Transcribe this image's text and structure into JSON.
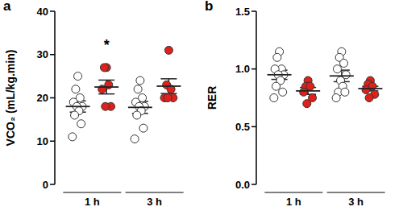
{
  "chart_data": [
    {
      "type": "scatter",
      "title": "a",
      "y_label": "VCO₂ (mL/kg.min)",
      "categories": [
        "1 h",
        "3 h"
      ],
      "ylim": [
        0,
        40
      ],
      "yticks": [
        0,
        10,
        20,
        30,
        40
      ],
      "series": [
        {
          "color": "#ffffff",
          "values": [
            [
              25,
              22,
              20,
              19,
              18,
              18,
              17,
              16,
              14,
              11
            ],
            [
              24,
              22,
              20,
              19,
              18,
              18,
              17,
              16,
              13,
              10.5
            ]
          ],
          "mean": [
            18,
            17.8
          ],
          "sem": [
            1.3,
            1.4
          ]
        },
        {
          "color": "#e0201b",
          "values": [
            [
              27,
              27,
              23,
              22,
              18,
              18
            ],
            [
              31,
              23,
              22,
              20,
              20,
              20
            ]
          ],
          "mean": [
            22.5,
            22.7
          ],
          "sem": [
            1.6,
            1.7
          ]
        }
      ],
      "annotations": [
        {
          "text": "*",
          "category": "1 h",
          "series": 1
        }
      ]
    },
    {
      "type": "scatter",
      "title": "b",
      "y_label": "RER",
      "categories": [
        "1 h",
        "3 h"
      ],
      "ylim": [
        0,
        1.5
      ],
      "yticks": [
        {
          "value": 0,
          "label": "0.0"
        },
        0.5,
        {
          "value": 1,
          "label": "1.0"
        },
        1.5
      ],
      "series": [
        {
          "color": "#ffffff",
          "values": [
            [
              1.15,
              1.1,
              1.0,
              1.0,
              0.95,
              0.95,
              0.9,
              0.85,
              0.8,
              0.75
            ],
            [
              1.15,
              1.1,
              1.05,
              1.0,
              0.95,
              0.9,
              0.85,
              0.8,
              0.8,
              0.75
            ]
          ],
          "mean": [
            0.95,
            0.94
          ],
          "sem": [
            0.04,
            0.05
          ]
        },
        {
          "color": "#e0201b",
          "values": [
            [
              0.9,
              0.85,
              0.85,
              0.8,
              0.75,
              0.7
            ],
            [
              0.9,
              0.87,
              0.85,
              0.82,
              0.78,
              0.75
            ]
          ],
          "mean": [
            0.81,
            0.83
          ],
          "sem": [
            0.03,
            0.02
          ]
        }
      ]
    }
  ]
}
